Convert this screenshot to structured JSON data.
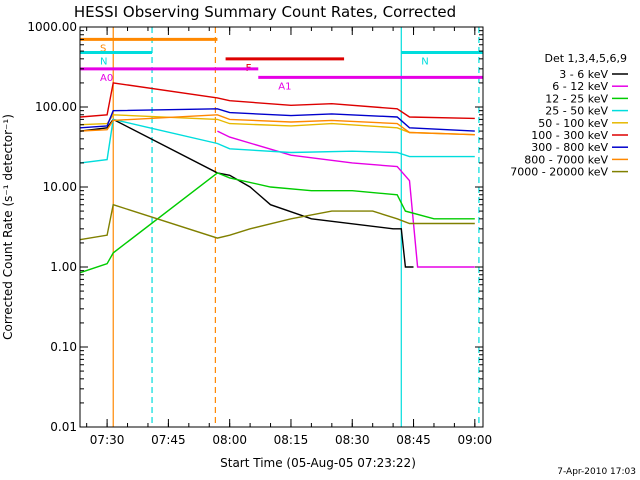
{
  "chart_data": {
    "type": "line",
    "title": "HESSI Observing Summary Count Rates, Corrected",
    "xlabel": "Start Time (05-Aug-05 07:23:22)",
    "ylabel": "Corrected Count Rate (s⁻¹ detector⁻¹)",
    "yscale": "log",
    "ylim": [
      0.01,
      1000
    ],
    "xlim": [
      "07:23:22",
      "09:02:00"
    ],
    "ytick_labels": [
      "0.01",
      "0.10",
      "1.00",
      "10.00",
      "100.00",
      "1000.00"
    ],
    "xtick_labels": [
      "07:30",
      "07:45",
      "08:00",
      "08:15",
      "08:30",
      "08:45",
      "09:00"
    ],
    "legend_title": "Det 1,3,4,5,6,9",
    "legend_position": "right",
    "series": [
      {
        "name": "3 - 6 keV",
        "color": "#000000",
        "points": [
          [
            "07:23:30",
            50
          ],
          [
            "07:30:00",
            55
          ],
          [
            "07:31:30",
            70
          ],
          [
            "07:57:00",
            15
          ],
          [
            "08:00:00",
            14
          ],
          [
            "08:05:00",
            10
          ],
          [
            "08:10:00",
            6
          ],
          [
            "08:20:00",
            4
          ],
          [
            "08:40:00",
            3
          ],
          [
            "08:42:00",
            3
          ],
          [
            "08:43:00",
            1.0
          ],
          [
            "08:45:00",
            1.0
          ]
        ]
      },
      {
        "name": "6 - 12 keV",
        "color": "#e600e6",
        "points": [
          [
            "07:57:00",
            50
          ],
          [
            "08:00:00",
            42
          ],
          [
            "08:15:00",
            25
          ],
          [
            "08:30:00",
            20
          ],
          [
            "08:41:00",
            18
          ],
          [
            "08:44:00",
            12
          ],
          [
            "08:46:00",
            1.0
          ],
          [
            "09:00:00",
            1.0
          ]
        ]
      },
      {
        "name": "12 - 25 keV",
        "color": "#00cc00",
        "points": [
          [
            "07:23:30",
            0.85
          ],
          [
            "07:30:00",
            1.1
          ],
          [
            "07:31:30",
            1.5
          ],
          [
            "07:57:00",
            15
          ],
          [
            "08:00:00",
            13
          ],
          [
            "08:10:00",
            10
          ],
          [
            "08:20:00",
            9
          ],
          [
            "08:30:00",
            9
          ],
          [
            "08:41:00",
            8
          ],
          [
            "08:43:00",
            5
          ],
          [
            "08:50:00",
            4
          ],
          [
            "09:00:00",
            4
          ]
        ]
      },
      {
        "name": "25 - 50 keV",
        "color": "#00dddd",
        "points": [
          [
            "07:23:30",
            20
          ],
          [
            "07:30:00",
            22
          ],
          [
            "07:31:30",
            70
          ],
          [
            "07:57:00",
            35
          ],
          [
            "08:00:00",
            30
          ],
          [
            "08:15:00",
            27
          ],
          [
            "08:30:00",
            28
          ],
          [
            "08:41:00",
            27
          ],
          [
            "08:44:00",
            24
          ],
          [
            "09:00:00",
            24
          ]
        ]
      },
      {
        "name": "50 - 100 keV",
        "color": "#e6b800",
        "points": [
          [
            "07:23:30",
            60
          ],
          [
            "07:30:00",
            62
          ],
          [
            "07:31:30",
            80
          ],
          [
            "07:57:00",
            70
          ],
          [
            "08:00:00",
            62
          ],
          [
            "08:15:00",
            58
          ],
          [
            "08:25:00",
            62
          ],
          [
            "08:41:00",
            55
          ],
          [
            "08:44:00",
            48
          ],
          [
            "09:00:00",
            45
          ]
        ]
      },
      {
        "name": "100 - 300 keV",
        "color": "#dd0000",
        "points": [
          [
            "07:23:30",
            75
          ],
          [
            "07:30:00",
            80
          ],
          [
            "07:31:30",
            200
          ],
          [
            "07:57:00",
            130
          ],
          [
            "08:00:00",
            120
          ],
          [
            "08:15:00",
            105
          ],
          [
            "08:25:00",
            110
          ],
          [
            "08:41:00",
            95
          ],
          [
            "08:44:00",
            75
          ],
          [
            "09:00:00",
            72
          ]
        ]
      },
      {
        "name": "300 - 800 keV",
        "color": "#0000cc",
        "points": [
          [
            "07:23:30",
            55
          ],
          [
            "07:30:00",
            58
          ],
          [
            "07:31:30",
            90
          ],
          [
            "07:57:00",
            95
          ],
          [
            "08:00:00",
            85
          ],
          [
            "08:15:00",
            78
          ],
          [
            "08:25:00",
            82
          ],
          [
            "08:41:00",
            75
          ],
          [
            "08:44:00",
            55
          ],
          [
            "09:00:00",
            50
          ]
        ]
      },
      {
        "name": "800 - 7000 keV",
        "color": "#ff8800",
        "points": [
          [
            "07:23:30",
            50
          ],
          [
            "07:30:00",
            52
          ],
          [
            "07:31:30",
            68
          ],
          [
            "07:57:00",
            80
          ],
          [
            "08:00:00",
            70
          ],
          [
            "08:15:00",
            65
          ],
          [
            "08:25:00",
            68
          ],
          [
            "08:41:00",
            62
          ],
          [
            "08:44:00",
            48
          ],
          [
            "09:00:00",
            45
          ]
        ]
      },
      {
        "name": "7000 - 20000 keV",
        "color": "#808000",
        "points": [
          [
            "07:23:30",
            2.2
          ],
          [
            "07:30:00",
            2.5
          ],
          [
            "07:31:30",
            6
          ],
          [
            "07:57:00",
            2.3
          ],
          [
            "08:00:00",
            2.5
          ],
          [
            "08:05:00",
            3
          ],
          [
            "08:15:00",
            4
          ],
          [
            "08:25:00",
            5
          ],
          [
            "08:35:00",
            5
          ],
          [
            "08:41:00",
            4
          ],
          [
            "08:44:00",
            3.5
          ],
          [
            "09:00:00",
            3.5
          ]
        ]
      }
    ],
    "flag_bars": [
      {
        "label": "S",
        "start": "07:23:22",
        "end": "07:57:00",
        "y": 700,
        "color": "#ff8800"
      },
      {
        "label": "N",
        "start": "07:23:22",
        "end": "07:41:00",
        "y": 480,
        "color": "#00dddd"
      },
      {
        "label": "N",
        "start": "08:42:00",
        "end": "09:02:00",
        "y": 480,
        "color": "#00dddd"
      },
      {
        "label": "F",
        "start": "07:59:00",
        "end": "08:28:00",
        "y": 400,
        "color": "#dd0000"
      },
      {
        "label": "A0",
        "start": "07:23:22",
        "end": "08:07:00",
        "y": 300,
        "color": "#e600e6"
      },
      {
        "label": "A1",
        "start": "08:07:00",
        "end": "09:02:00",
        "y": 235,
        "color": "#e600e6"
      }
    ],
    "vertical_markers": [
      {
        "time": "07:31:30",
        "color": "#ff8800",
        "style": "solid"
      },
      {
        "time": "07:41:00",
        "color": "#00dddd",
        "style": "dashed"
      },
      {
        "time": "07:56:30",
        "color": "#ff8800",
        "style": "dashed"
      },
      {
        "time": "08:42:00",
        "color": "#00dddd",
        "style": "solid"
      },
      {
        "time": "09:01:00",
        "color": "#00dddd",
        "style": "dashed"
      }
    ],
    "footer": "7-Apr-2010 17:03"
  }
}
